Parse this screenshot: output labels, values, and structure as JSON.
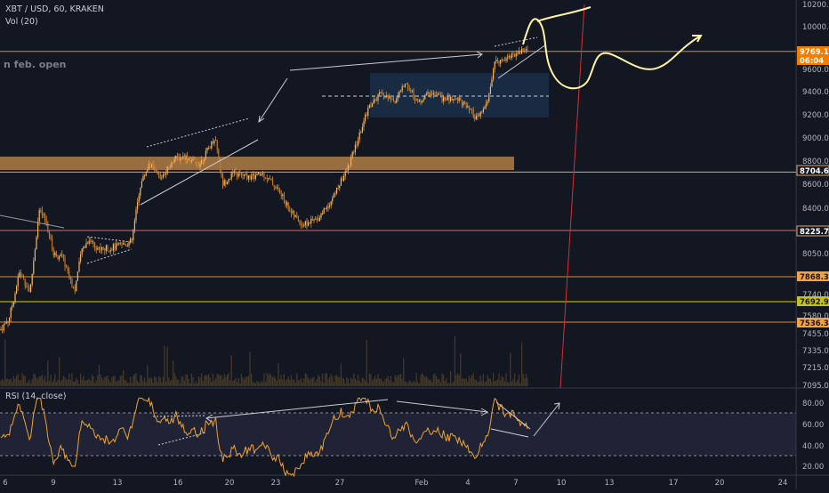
{
  "window": {
    "symbol_line": "XBT / USD, 60, KRAKEN",
    "volume_line": "Vol (20)",
    "annotation": "n feb. open",
    "rsi_label": "RSI (14, close)"
  },
  "chart_data": {
    "type": "candlestick",
    "symbol": "XBT / USD",
    "interval": "60",
    "exchange": "KRAKEN",
    "price_axis": {
      "ticks": [
        "10200.0",
        "10000.0",
        "9600.0",
        "9400.0",
        "9200.0",
        "9000.0",
        "8800.0",
        "8600.0",
        "8400.0",
        "8225.7",
        "8050.0",
        "7868.3",
        "7740.0",
        "7692.9",
        "7580.0",
        "7536.3",
        "7455.0",
        "7335.0",
        "7215.0",
        "7095.0"
      ]
    },
    "time_axis": {
      "ticks": [
        "6",
        "9",
        "13",
        "16",
        "20",
        "23",
        "27",
        "Feb",
        "4",
        "7",
        "10",
        "13",
        "17",
        "20",
        "24"
      ]
    },
    "price_labels": [
      {
        "value": "9769.1",
        "style": "current",
        "color": "#f57c00"
      },
      {
        "value": "06:04",
        "style": "countdown",
        "color": "#f57c00"
      },
      {
        "value": "8704.6",
        "style": "outline",
        "color": "#e3a65c"
      },
      {
        "value": "8225.7",
        "style": "outline",
        "color": "#e3a65c"
      },
      {
        "value": "7868.3",
        "style": "filled",
        "color": "#f5a142"
      },
      {
        "value": "7692.9",
        "style": "filled",
        "color": "#c5c21a"
      },
      {
        "value": "7536.3",
        "style": "filled",
        "color": "#f5a142"
      }
    ],
    "horizontal_levels": [
      {
        "price": 9769.1,
        "color": "#e08a28"
      },
      {
        "price": 8704.6,
        "color": "#d7a65c"
      },
      {
        "price": 8225.7,
        "color": "#d36b6b"
      },
      {
        "price": 7868.3,
        "color": "#e08a28"
      },
      {
        "price": 7692.9,
        "color": "#d6d60a"
      },
      {
        "price": 7536.3,
        "color": "#e08a28"
      }
    ],
    "zones": [
      {
        "kind": "support-band",
        "from_price": 8720,
        "to_price": 8820,
        "color": "#b07d45"
      },
      {
        "kind": "range-box",
        "from_price": 9170,
        "to_price": 9560,
        "color": "#1f3a5f"
      }
    ],
    "rsi": {
      "period": 14,
      "source": "close",
      "ticks": [
        "80.00",
        "60.00",
        "40.00",
        "20.00"
      ],
      "upper_band": 70,
      "lower_band": 30
    },
    "colors": {
      "up_candle": "#e8a040",
      "down_candle": "#e8a040",
      "rsi_line": "#f0a22e",
      "projection": "#fff3a8",
      "vertical_marker": "#d32f2f",
      "background": "#131722"
    },
    "grid": false,
    "legend": "top-left"
  }
}
